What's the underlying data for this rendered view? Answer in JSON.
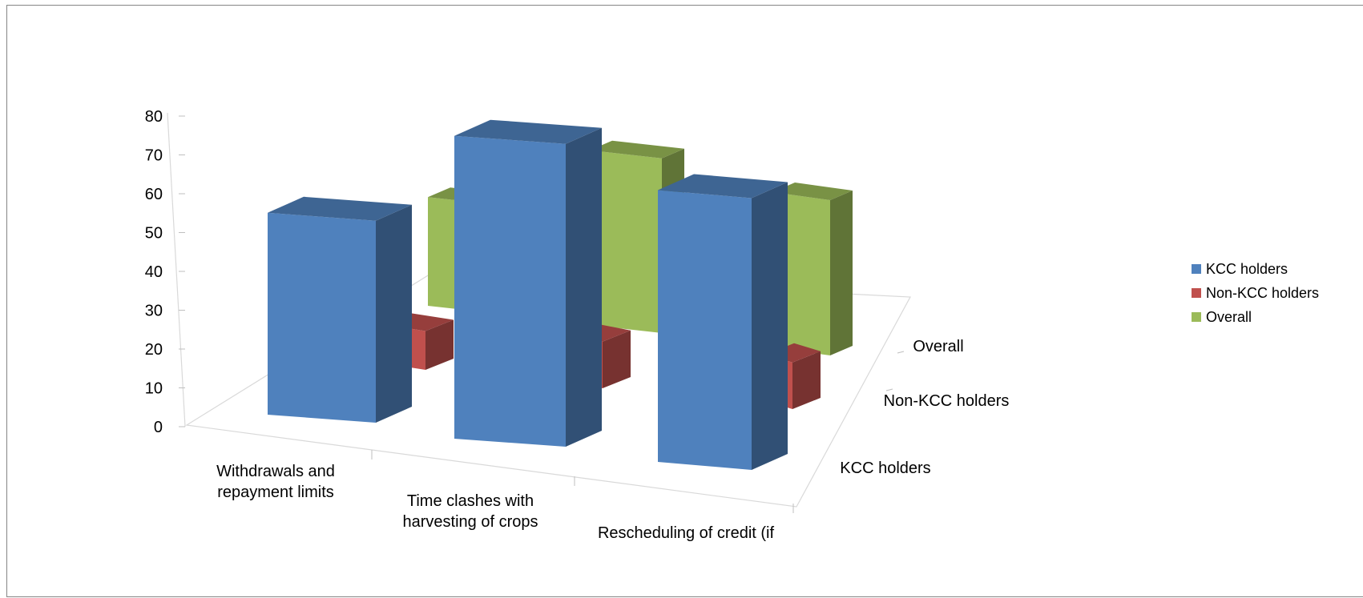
{
  "chart_data": {
    "type": "bar",
    "variant": "3d-column",
    "categories": [
      "Withdrawals and\nrepayment limits",
      "Time clashes with\nharvesting of crops",
      "Rescheduling of credit (if"
    ],
    "series": [
      {
        "name": "KCC holders",
        "values": [
          52,
          78,
          70
        ],
        "color": "#4F81BD"
      },
      {
        "name": "Non-KCC holders",
        "values": [
          10,
          12,
          12
        ],
        "color": "#C0504D"
      },
      {
        "name": "Overall",
        "values": [
          28,
          45,
          40
        ],
        "color": "#9BBB59"
      }
    ],
    "depth_labels": [
      "KCC holders",
      "Non-KCC holders",
      "Overall"
    ],
    "legend": [
      "KCC holders",
      "Non-KCC holders",
      "Overall"
    ],
    "legend_placement": "right",
    "yticks": [
      0,
      10,
      20,
      30,
      40,
      50,
      60,
      70,
      80
    ],
    "ylim": [
      0,
      80
    ],
    "grid": false
  }
}
